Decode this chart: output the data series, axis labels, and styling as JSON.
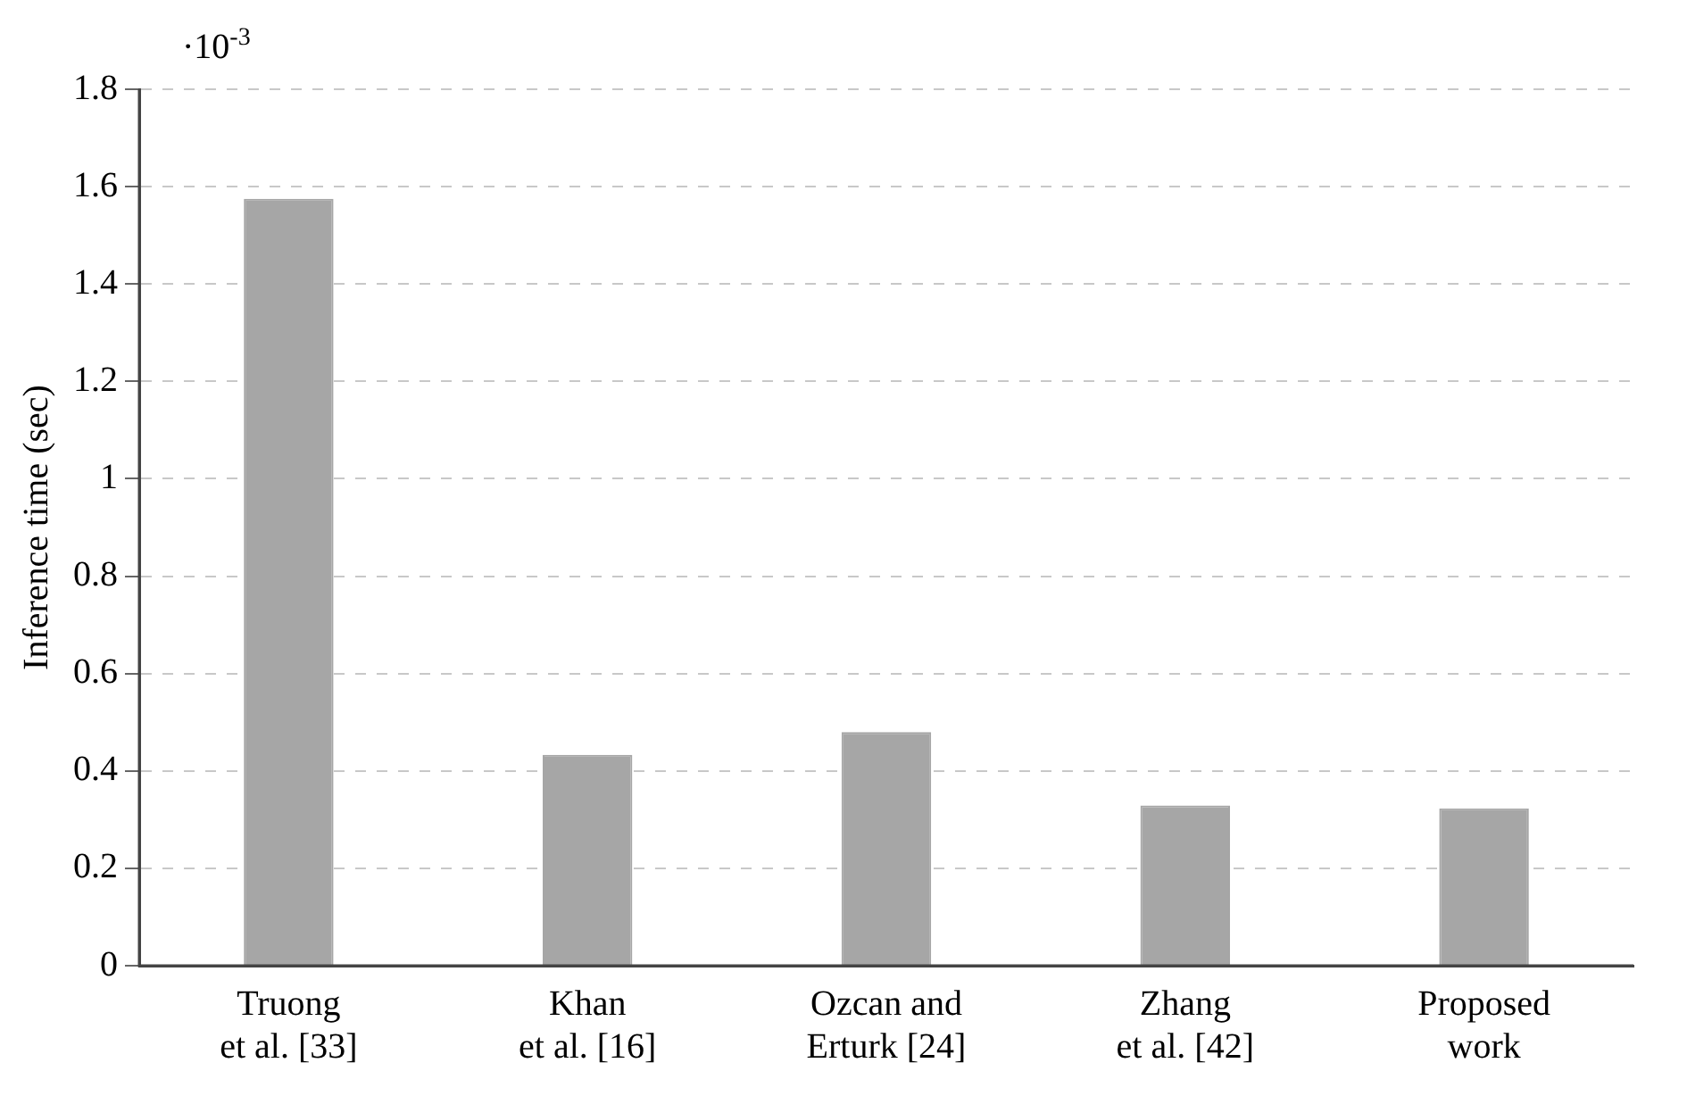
{
  "chart_data": {
    "type": "bar",
    "ylabel": "Inference time (sec)",
    "categories": [
      "Truong\net al. [33]",
      "Khan\net al. [16]",
      "Ozcan and\nErturk [24]",
      "Zhang\net al. [42]",
      "Proposed\nwork"
    ],
    "values": [
      1.575,
      0.433,
      0.48,
      0.329,
      0.323
    ],
    "color": "#a6a6a6",
    "ylim": [
      0,
      1.8
    ],
    "yticks": [
      0,
      0.2,
      0.4,
      0.6,
      0.8,
      1,
      1.2,
      1.4,
      1.6,
      1.8
    ],
    "grid": "y",
    "legend": false,
    "annotations": [
      "·10$^{-3}$"
    ]
  }
}
